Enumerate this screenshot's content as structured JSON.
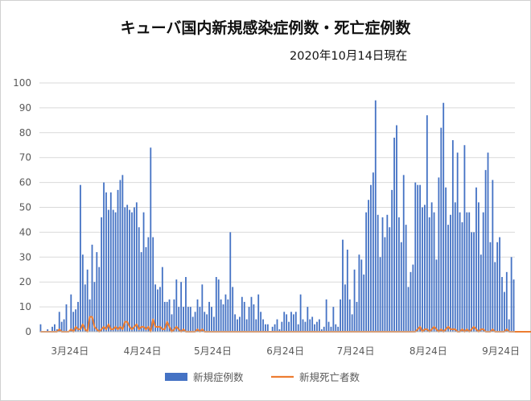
{
  "chart_data": {
    "type": "bar+line",
    "title": "キューバ国内新規感染症例数・死亡症例数",
    "subtitle": "2020年10月14日現在",
    "ylim": [
      0,
      100
    ],
    "yticks": [
      0,
      10,
      20,
      30,
      40,
      50,
      60,
      70,
      80,
      90,
      100
    ],
    "xticks": [
      {
        "label": "3月24日",
        "day": 0
      },
      {
        "label": "4月24日",
        "day": 31
      },
      {
        "label": "5月24日",
        "day": 61
      },
      {
        "label": "6月24日",
        "day": 92
      },
      {
        "label": "7月24日",
        "day": 122
      },
      {
        "label": "8月24日",
        "day": 153
      },
      {
        "label": "9月24日",
        "day": 184
      }
    ],
    "grid": true,
    "legend_position": "bottom",
    "series": [
      {
        "name": "新規症例数",
        "type": "bar",
        "color": "#4472C4",
        "start_date": "2020-03-11",
        "values": [
          3,
          0,
          0,
          1,
          0,
          2,
          3,
          1,
          8,
          4,
          5,
          11,
          0,
          15,
          8,
          9,
          12,
          59,
          31,
          19,
          25,
          13,
          35,
          20,
          32,
          26,
          46,
          60,
          56,
          49,
          56,
          49,
          48,
          57,
          61,
          63,
          50,
          51,
          49,
          48,
          50,
          52,
          42,
          32,
          48,
          34,
          38,
          74,
          38,
          19,
          17,
          18,
          26,
          12,
          12,
          13,
          7,
          13,
          21,
          10,
          20,
          10,
          22,
          10,
          10,
          6,
          8,
          13,
          10,
          19,
          8,
          7,
          12,
          10,
          6,
          22,
          21,
          13,
          11,
          15,
          13,
          40,
          18,
          7,
          5,
          6,
          14,
          12,
          5,
          10,
          14,
          11,
          5,
          15,
          8,
          5,
          3,
          3,
          0,
          2,
          3,
          5,
          1,
          4,
          8,
          7,
          4,
          8,
          7,
          8,
          3,
          15,
          5,
          4,
          10,
          5,
          6,
          3,
          4,
          5,
          1,
          2,
          13,
          4,
          2,
          10,
          3,
          2,
          13,
          37,
          19,
          33,
          13,
          7,
          25,
          12,
          31,
          29,
          23,
          48,
          53,
          59,
          64,
          93,
          47,
          30,
          46,
          38,
          47,
          42,
          57,
          78,
          83,
          46,
          36,
          63,
          43,
          18,
          24,
          27,
          60,
          59,
          59,
          50,
          51,
          87,
          46,
          52,
          48,
          29,
          62,
          82,
          92,
          58,
          43,
          47,
          77,
          52,
          72,
          48,
          44,
          75,
          48,
          48,
          40,
          40,
          58,
          52,
          31,
          48,
          65,
          72,
          36,
          61,
          28,
          36,
          38,
          22,
          16,
          24,
          5,
          30,
          21
        ]
      },
      {
        "name": "新規死亡者数",
        "type": "line",
        "color": "#ED7D31",
        "start_date": "2020-03-11",
        "values": [
          0,
          0,
          0,
          0,
          0,
          0,
          0,
          0,
          1,
          0,
          0,
          0,
          0,
          1,
          0,
          2,
          1,
          1,
          3,
          1,
          0,
          6,
          6,
          2,
          1,
          0,
          1,
          2,
          1,
          3,
          1,
          1,
          2,
          1,
          2,
          1,
          4,
          4,
          2,
          1,
          2,
          3,
          1,
          2,
          2,
          1,
          2,
          0,
          5,
          2,
          2,
          2,
          1,
          1,
          4,
          2,
          0,
          1,
          2,
          1,
          0,
          1,
          0,
          0,
          0,
          0,
          0,
          1,
          0,
          1,
          0,
          0,
          0,
          0,
          0,
          0,
          0,
          0,
          0,
          0,
          0,
          0,
          0,
          0,
          0,
          0,
          0,
          0,
          0,
          0,
          0,
          0,
          0,
          0,
          0,
          0,
          0,
          0,
          0,
          0,
          0,
          0,
          0,
          0,
          0,
          0,
          0,
          0,
          0,
          0,
          0,
          0,
          0,
          0,
          0,
          0,
          0,
          0,
          0,
          0,
          0,
          0,
          0,
          0,
          0,
          0,
          0,
          0,
          0,
          0,
          0,
          0,
          0,
          0,
          0,
          0,
          0,
          0,
          0,
          0,
          0,
          0,
          0,
          0,
          0,
          0,
          0,
          0,
          0,
          0,
          0,
          0,
          0,
          0,
          0,
          0,
          0,
          0,
          0,
          0,
          0,
          1,
          2,
          0,
          1,
          1,
          0,
          1,
          2,
          1,
          0,
          1,
          0,
          1,
          2,
          1,
          1,
          1,
          0,
          0,
          1,
          0,
          1,
          0,
          1,
          2,
          1,
          0,
          1,
          1,
          0,
          0,
          0,
          1,
          0,
          0,
          0,
          0,
          0,
          1,
          0,
          0,
          0,
          0,
          0,
          0,
          0,
          0,
          0,
          0,
          0,
          0,
          0,
          0,
          0,
          0
        ]
      }
    ]
  }
}
